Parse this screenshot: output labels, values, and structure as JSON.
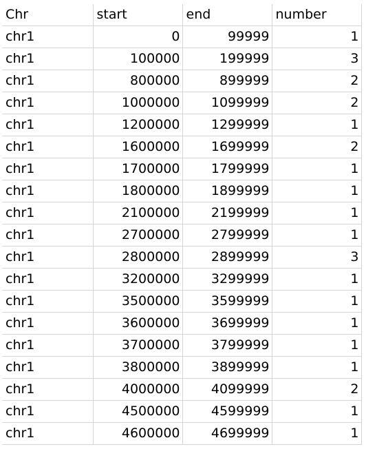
{
  "header": [
    "Chr",
    "start",
    "end",
    "number"
  ],
  "rows": [
    {
      "chr": "chr1",
      "start": "0",
      "end": "99999",
      "number": "1"
    },
    {
      "chr": "chr1",
      "start": "100000",
      "end": "199999",
      "number": "3"
    },
    {
      "chr": "chr1",
      "start": "800000",
      "end": "899999",
      "number": "2"
    },
    {
      "chr": "chr1",
      "start": "1000000",
      "end": "1099999",
      "number": "2"
    },
    {
      "chr": "chr1",
      "start": "1200000",
      "end": "1299999",
      "number": "1"
    },
    {
      "chr": "chr1",
      "start": "1600000",
      "end": "1699999",
      "number": "2"
    },
    {
      "chr": "chr1",
      "start": "1700000",
      "end": "1799999",
      "number": "1"
    },
    {
      "chr": "chr1",
      "start": "1800000",
      "end": "1899999",
      "number": "1"
    },
    {
      "chr": "chr1",
      "start": "2100000",
      "end": "2199999",
      "number": "1"
    },
    {
      "chr": "chr1",
      "start": "2700000",
      "end": "2799999",
      "number": "1"
    },
    {
      "chr": "chr1",
      "start": "2800000",
      "end": "2899999",
      "number": "3"
    },
    {
      "chr": "chr1",
      "start": "3200000",
      "end": "3299999",
      "number": "1"
    },
    {
      "chr": "chr1",
      "start": "3500000",
      "end": "3599999",
      "number": "1"
    },
    {
      "chr": "chr1",
      "start": "3600000",
      "end": "3699999",
      "number": "1"
    },
    {
      "chr": "chr1",
      "start": "3700000",
      "end": "3799999",
      "number": "1"
    },
    {
      "chr": "chr1",
      "start": "3800000",
      "end": "3899999",
      "number": "1"
    },
    {
      "chr": "chr1",
      "start": "4000000",
      "end": "4099999",
      "number": "2"
    },
    {
      "chr": "chr1",
      "start": "4500000",
      "end": "4599999",
      "number": "1"
    },
    {
      "chr": "chr1",
      "start": "4600000",
      "end": "4699999",
      "number": "1"
    }
  ]
}
